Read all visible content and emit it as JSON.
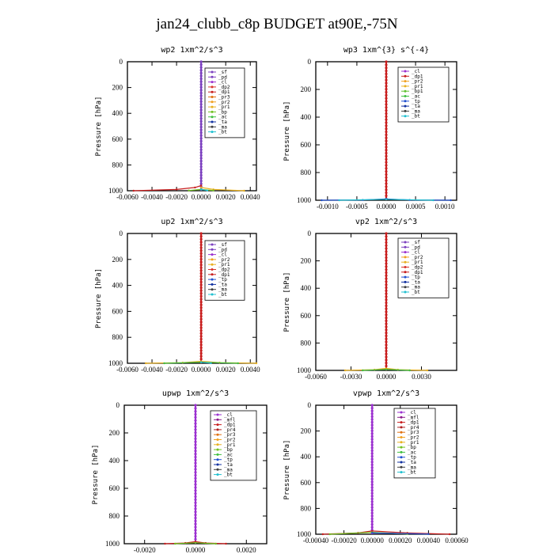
{
  "title": "jan24_clubb_c8p  BUDGET at90E,-75N",
  "colors": {
    "sf": "#7b3fbf",
    "pd": "#7b3fbf",
    "cl": "#9b30d0",
    "mfl": "#8b1a8b",
    "dp1": "#c81e1e",
    "dp2": "#d9342b",
    "pr1": "#e8b020",
    "pr2": "#f0a020",
    "pr3": "#e07010",
    "pr4": "#b02020",
    "bp": "#70c020",
    "bp1": "#60c030",
    "ac": "#40c040",
    "tp": "#2050d0",
    "ta": "#1030a0",
    "ma": "#404040",
    "bt": "#20c0d0",
    "frame": "#000000",
    "background": "#ffffff"
  },
  "chart_data": [
    {
      "type": "line",
      "title": "wp2   1xm^2/s^3",
      "ylabel": "Pressure [hPa]",
      "xlim": [
        -0.006,
        0.0045
      ],
      "ylim": [
        1000,
        0
      ],
      "xticks": [
        "-0.0060",
        "-0.0040",
        "-0.0020",
        "0.0000",
        "0.0020",
        "0.0040"
      ],
      "xtick_values": [
        -0.006,
        -0.004,
        -0.002,
        0,
        0.002,
        0.004
      ],
      "yticks": [
        "0",
        "200",
        "400",
        "600",
        "800",
        "1000"
      ],
      "legend": [
        "_sf",
        "_pd",
        "_cl",
        "_dp2",
        "_dp1",
        "_pr3",
        "_pr2",
        "_pr1",
        "_bp",
        "_ac",
        "_ta",
        "_ma",
        "_bt"
      ],
      "legend_position": "top-right",
      "series": [
        {
          "name": "_sf",
          "values": [
            {
              "x": 0.0,
              "y": 0
            },
            {
              "x": 0.0,
              "y": 985
            },
            {
              "x": 0.0,
              "y": 1000
            }
          ]
        },
        {
          "name": "_dp1",
          "values": [
            {
              "x": -0.0055,
              "y": 1000
            },
            {
              "x": -0.002,
              "y": 990
            },
            {
              "x": -0.0005,
              "y": 975
            },
            {
              "x": 0.0,
              "y": 960
            }
          ]
        },
        {
          "name": "_pr1",
          "values": [
            {
              "x": 0.0035,
              "y": 1000
            },
            {
              "x": 0.001,
              "y": 990
            },
            {
              "x": 0.0,
              "y": 975
            }
          ]
        },
        {
          "name": "_bp",
          "values": [
            {
              "x": -0.001,
              "y": 998
            },
            {
              "x": 0.0,
              "y": 990
            },
            {
              "x": 0.001,
              "y": 998
            }
          ]
        },
        {
          "name": "_bt",
          "values": [
            {
              "x": 0.0,
              "y": 990
            },
            {
              "x": 0.0005,
              "y": 998
            }
          ]
        }
      ]
    },
    {
      "type": "line",
      "title": "wp3   1xm^{3} s^{-4}",
      "ylabel": "Pressure [hPa]",
      "xlim": [
        -0.0012,
        0.0012
      ],
      "ylim": [
        1000,
        0
      ],
      "xticks": [
        "-0.0010",
        "-0.0005",
        "0.0000",
        "0.0005",
        "0.0010"
      ],
      "xtick_values": [
        -0.001,
        -0.0005,
        0,
        0.0005,
        0.001
      ],
      "yticks": [
        "0",
        "200",
        "400",
        "600",
        "800",
        "1000"
      ],
      "legend": [
        "_cl",
        "_dp1",
        "_pr2",
        "_pr1",
        "_bp1",
        "_ac",
        "_tp",
        "_ta",
        "_ma",
        "_bt"
      ],
      "legend_position": "top-right",
      "series": [
        {
          "name": "_dp1",
          "values": [
            {
              "x": 0.0,
              "y": 0
            },
            {
              "x": 0.0,
              "y": 985
            },
            {
              "x": 0.0,
              "y": 1000
            }
          ]
        },
        {
          "name": "_tp",
          "values": [
            {
              "x": -0.0011,
              "y": 1000
            },
            {
              "x": -0.0004,
              "y": 998
            },
            {
              "x": 0.0,
              "y": 990
            },
            {
              "x": 0.0004,
              "y": 998
            },
            {
              "x": 0.0011,
              "y": 1000
            }
          ]
        },
        {
          "name": "_bt",
          "values": [
            {
              "x": -0.0008,
              "y": 1000
            },
            {
              "x": 0.0,
              "y": 993
            },
            {
              "x": 0.0008,
              "y": 1000
            }
          ]
        }
      ]
    },
    {
      "type": "line",
      "title": "up2   1xm^2/s^3",
      "ylabel": "Pressure [hPa]",
      "xlim": [
        -0.006,
        0.0045
      ],
      "ylim": [
        1000,
        0
      ],
      "xticks": [
        "-0.0060",
        "-0.0040",
        "-0.0020",
        "0.0000",
        "0.0020",
        "0.0040"
      ],
      "xtick_values": [
        -0.006,
        -0.004,
        -0.002,
        0,
        0.002,
        0.004
      ],
      "yticks": [
        "0",
        "200",
        "400",
        "600",
        "800",
        "1000"
      ],
      "legend": [
        "_sf",
        "_pd",
        "_cl",
        "_pr2",
        "_pr1",
        "_dp2",
        "_dp1",
        "_tp",
        "_ta",
        "_ma",
        "_bt"
      ],
      "legend_position": "top-right",
      "series": [
        {
          "name": "_dp1",
          "values": [
            {
              "x": 0.0,
              "y": 0
            },
            {
              "x": 0.0,
              "y": 985
            },
            {
              "x": 0.0,
              "y": 1000
            }
          ]
        },
        {
          "name": "_pr1",
          "values": [
            {
              "x": -0.0045,
              "y": 1000
            },
            {
              "x": -0.0015,
              "y": 995
            },
            {
              "x": 0.0,
              "y": 985
            },
            {
              "x": 0.0015,
              "y": 995
            },
            {
              "x": 0.0045,
              "y": 1000
            }
          ]
        },
        {
          "name": "_ac",
          "values": [
            {
              "x": -0.003,
              "y": 1000
            },
            {
              "x": 0.0,
              "y": 992
            },
            {
              "x": 0.003,
              "y": 1000
            }
          ]
        },
        {
          "name": "_bt",
          "values": [
            {
              "x": 0.0,
              "y": 992
            },
            {
              "x": 0.0008,
              "y": 999
            }
          ]
        }
      ]
    },
    {
      "type": "line",
      "title": "vp2   1xm^2/s^3",
      "ylabel": "Pressure [hPa]",
      "xlim": [
        -0.006,
        0.006
      ],
      "ylim": [
        1000,
        0
      ],
      "xticks": [
        "-0.0060",
        "-0.0030",
        "0.0000",
        "0.0030"
      ],
      "xtick_values": [
        -0.006,
        -0.003,
        0,
        0.003
      ],
      "yticks": [
        "0",
        "200",
        "400",
        "600",
        "800",
        "1000"
      ],
      "legend": [
        "_sf",
        "_pd",
        "_cl",
        "_pr2",
        "_pr1",
        "_dp2",
        "_dp1",
        "_tp",
        "_ta",
        "_ma",
        "_bt"
      ],
      "legend_position": "top-right",
      "series": [
        {
          "name": "_dp1",
          "values": [
            {
              "x": 0.0,
              "y": 0
            },
            {
              "x": 0.0,
              "y": 985
            },
            {
              "x": 0.0,
              "y": 1000
            }
          ]
        },
        {
          "name": "_pr1",
          "values": [
            {
              "x": -0.0035,
              "y": 1000
            },
            {
              "x": -0.001,
              "y": 995
            },
            {
              "x": 0.0,
              "y": 985
            },
            {
              "x": 0.001,
              "y": 995
            },
            {
              "x": 0.0035,
              "y": 1000
            }
          ]
        },
        {
          "name": "_ac",
          "values": [
            {
              "x": -0.002,
              "y": 1000
            },
            {
              "x": 0.0,
              "y": 993
            },
            {
              "x": 0.002,
              "y": 1000
            }
          ]
        }
      ]
    },
    {
      "type": "line",
      "title": "upwp   1xm^2/s^3",
      "ylabel": "Pressure [hPa]",
      "xlim": [
        -0.0028,
        0.0028
      ],
      "ylim": [
        1000,
        0
      ],
      "xticks": [
        "-0.0020",
        "0.0000",
        "0.0020"
      ],
      "xtick_values": [
        -0.002,
        0,
        0.002
      ],
      "yticks": [
        "0",
        "200",
        "400",
        "600",
        "800",
        "1000"
      ],
      "legend": [
        "_cl",
        "_mfl",
        "_dp1",
        "_pr4",
        "_pr3",
        "_pr2",
        "_pr1",
        "_bp",
        "_ac",
        "_tp",
        "_ta",
        "_ma",
        "_bt"
      ],
      "legend_position": "top-right",
      "series": [
        {
          "name": "_cl",
          "values": [
            {
              "x": 0.0,
              "y": 0
            },
            {
              "x": 0.0,
              "y": 985
            },
            {
              "x": 0.0,
              "y": 1000
            }
          ]
        },
        {
          "name": "_dp1",
          "values": [
            {
              "x": -0.0012,
              "y": 1000
            },
            {
              "x": -0.0004,
              "y": 995
            },
            {
              "x": 0.0,
              "y": 985
            },
            {
              "x": 0.0004,
              "y": 995
            },
            {
              "x": 0.0012,
              "y": 1000
            }
          ]
        },
        {
          "name": "_bp",
          "values": [
            {
              "x": -0.0008,
              "y": 1000
            },
            {
              "x": 0.0,
              "y": 993
            },
            {
              "x": 0.0008,
              "y": 1000
            }
          ]
        }
      ]
    },
    {
      "type": "line",
      "title": "vpwp   1xm^2/s^3",
      "ylabel": "Pressure [hPa]",
      "xlim": [
        -0.0004,
        0.0006
      ],
      "ylim": [
        1000,
        0
      ],
      "xticks": [
        "-0.00040",
        "-0.00020",
        "0.00000",
        "0.00020",
        "0.00040",
        "0.00060"
      ],
      "xtick_values": [
        -0.0004,
        -0.0002,
        0,
        0.0002,
        0.0004,
        0.0006
      ],
      "yticks": [
        "0",
        "200",
        "400",
        "600",
        "800",
        "1000"
      ],
      "legend": [
        "_cl",
        "_mfl",
        "_dp1",
        "_pr4",
        "_pr3",
        "_pr2",
        "_pr1",
        "_bp",
        "_ac",
        "_tp",
        "_ta",
        "_ma",
        "_bt"
      ],
      "legend_position": "top-right",
      "series": [
        {
          "name": "_cl",
          "values": [
            {
              "x": 0.0,
              "y": 0
            },
            {
              "x": 0.0,
              "y": 985
            },
            {
              "x": 0.0,
              "y": 1000
            }
          ]
        },
        {
          "name": "_dp1",
          "values": [
            {
              "x": -0.00035,
              "y": 1000
            },
            {
              "x": -0.0001,
              "y": 990
            },
            {
              "x": 0.0,
              "y": 975
            },
            {
              "x": 0.00025,
              "y": 990
            },
            {
              "x": 0.00055,
              "y": 1000
            }
          ]
        },
        {
          "name": "_bp",
          "values": [
            {
              "x": -0.0003,
              "y": 1000
            },
            {
              "x": 0.0,
              "y": 985
            },
            {
              "x": 0.00025,
              "y": 998
            }
          ]
        },
        {
          "name": "_tp",
          "values": [
            {
              "x": 0.0,
              "y": 990
            },
            {
              "x": 0.0004,
              "y": 999
            }
          ]
        }
      ]
    }
  ]
}
